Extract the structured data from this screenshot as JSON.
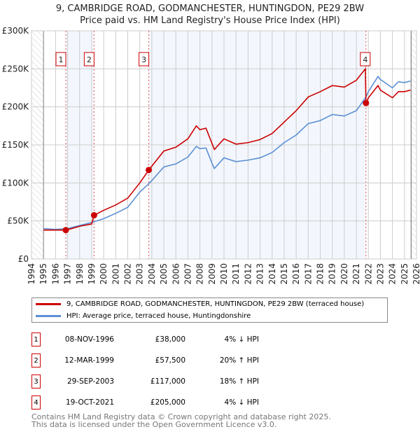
{
  "chart_data": {
    "type": "line",
    "title": "9, CAMBRIDGE ROAD, GODMANCHESTER, HUNTINGDON, PE29 2BW",
    "subtitle": "Price paid vs. HM Land Registry's House Price Index (HPI)",
    "xlim": [
      1994,
      2026
    ],
    "ylim": [
      0,
      300000
    ],
    "x_ticks": [
      "1994",
      "1995",
      "1996",
      "1997",
      "1998",
      "1999",
      "2000",
      "2001",
      "2002",
      "2003",
      "2004",
      "2005",
      "2006",
      "2007",
      "2008",
      "2009",
      "2010",
      "2011",
      "2012",
      "2013",
      "2014",
      "2015",
      "2016",
      "2017",
      "2018",
      "2019",
      "2020",
      "2021",
      "2022",
      "2023",
      "2024",
      "2025",
      "2026"
    ],
    "y_ticks": [
      {
        "v": 0,
        "label": "£0"
      },
      {
        "v": 50000,
        "label": "£50K"
      },
      {
        "v": 100000,
        "label": "£100K"
      },
      {
        "v": 150000,
        "label": "£150K"
      },
      {
        "v": 200000,
        "label": "£200K"
      },
      {
        "v": 250000,
        "label": "£250K"
      },
      {
        "v": 300000,
        "label": "£300K"
      }
    ],
    "series": [
      {
        "name": "9, CAMBRIDGE ROAD, GODMANCHESTER, HUNTINGDON, PE29 2BW (terraced house)",
        "color": "#cc0000",
        "x": [
          1995,
          1996,
          1996.85,
          1997,
          1998,
          1999,
          1999.2,
          2000,
          2001,
          2002,
          2003,
          2003.75,
          2004,
          2005,
          2006,
          2007,
          2007.7,
          2008,
          2008.5,
          2009,
          2009.2,
          2010,
          2011,
          2012,
          2013,
          2014,
          2015,
          2016,
          2017,
          2018,
          2019,
          2020,
          2021,
          2021.75,
          2021.8,
          2022,
          2022.8,
          2023,
          2024,
          2024.5,
          2025,
          2025.5
        ],
        "y": [
          38000,
          38000,
          38000,
          38500,
          43000,
          46000,
          57500,
          64000,
          71000,
          80000,
          100000,
          117000,
          122000,
          142000,
          147000,
          158000,
          175000,
          170000,
          172000,
          152000,
          144000,
          158000,
          151000,
          153000,
          157000,
          165000,
          180000,
          195000,
          213000,
          220000,
          228000,
          226000,
          235000,
          250000,
          205000,
          212000,
          228000,
          222000,
          212000,
          220000,
          220000,
          222000
        ]
      },
      {
        "name": "HPI: Average price, terraced house, Huntingdonshire",
        "color": "#5b8fd4",
        "x": [
          1995,
          1996,
          1997,
          1998,
          1999,
          2000,
          2001,
          2002,
          2003,
          2003.75,
          2004,
          2005,
          2006,
          2007,
          2007.7,
          2008,
          2008.5,
          2009,
          2009.2,
          2010,
          2011,
          2012,
          2013,
          2014,
          2015,
          2016,
          2017,
          2018,
          2019,
          2020,
          2021,
          2021.8,
          2022,
          2022.8,
          2023,
          2024,
          2024.5,
          2025,
          2025.5
        ],
        "y": [
          40000,
          39000,
          40000,
          44000,
          48000,
          53000,
          60000,
          68000,
          88000,
          99000,
          103000,
          121000,
          125000,
          134000,
          148000,
          145000,
          146000,
          126000,
          119000,
          133000,
          128000,
          130000,
          133000,
          140000,
          153000,
          163000,
          178000,
          182000,
          190000,
          188000,
          195000,
          213000,
          220000,
          240000,
          236000,
          225000,
          233000,
          232000,
          234000
        ]
      }
    ],
    "sales": [
      {
        "n": "1",
        "x": 1996.85,
        "y": 38000,
        "date": "08-NOV-1996",
        "price": "£38,000",
        "hpi": "4% ↓ HPI"
      },
      {
        "n": "2",
        "x": 1999.2,
        "y": 57500,
        "date": "12-MAR-1999",
        "price": "£57,500",
        "hpi": "20% ↑ HPI"
      },
      {
        "n": "3",
        "x": 2003.75,
        "y": 117000,
        "date": "29-SEP-2003",
        "price": "£117,000",
        "hpi": "18% ↑ HPI"
      },
      {
        "n": "4",
        "x": 2021.8,
        "y": 205000,
        "date": "19-OCT-2021",
        "price": "£205,000",
        "hpi": "4% ↓ HPI"
      }
    ]
  },
  "footer": [
    "Contains HM Land Registry data © Crown copyright and database right 2025.",
    "This data is licensed under the Open Government Licence v3.0."
  ]
}
